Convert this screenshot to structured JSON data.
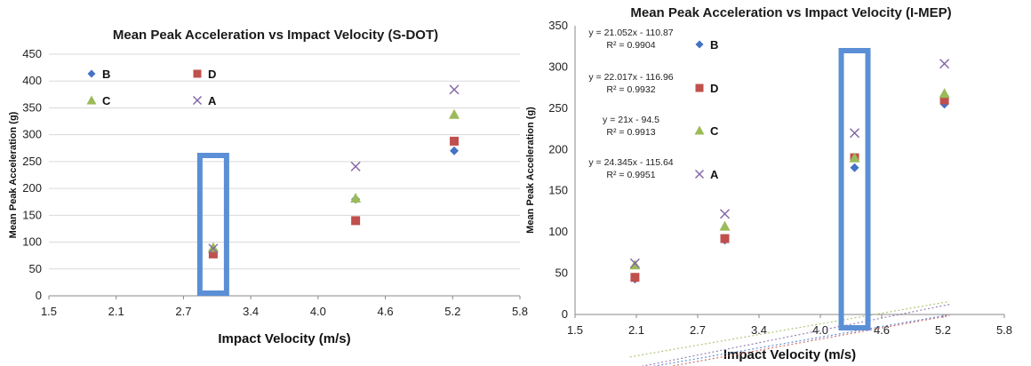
{
  "chart_data": [
    {
      "type": "scatter",
      "title": "Mean Peak Acceleration vs Impact Velocity (S-DOT)",
      "xlabel": "Impact Velocity (m/s)",
      "ylabel": "Mean Peak Acceleration (g)",
      "xlim": [
        1.5,
        5.8
      ],
      "ylim": [
        0,
        450
      ],
      "xticks": [
        "1.5",
        "2.1",
        "2.7",
        "3.4",
        "4.0",
        "4.6",
        "5.2",
        "5.8"
      ],
      "yticks": [
        "0",
        "50",
        "100",
        "150",
        "200",
        "250",
        "300",
        "350",
        "400",
        "450"
      ],
      "grid": true,
      "highlight_x": 3.0,
      "series": [
        {
          "name": "B",
          "color": "#4472C4",
          "marker": "diamond",
          "x": [
            3.0,
            4.3,
            5.2
          ],
          "y": [
            85,
            180,
            270
          ]
        },
        {
          "name": "D",
          "color": "#C0504D",
          "marker": "square",
          "x": [
            3.0,
            4.3,
            5.2
          ],
          "y": [
            78,
            140,
            288
          ]
        },
        {
          "name": "C",
          "color": "#9BBB59",
          "marker": "triangle",
          "x": [
            3.0,
            4.3,
            5.2
          ],
          "y": [
            90,
            182,
            338
          ]
        },
        {
          "name": "A",
          "color": "#8064A2",
          "marker": "cross",
          "x": [
            3.0,
            4.3,
            5.2
          ],
          "y": [
            88,
            241,
            384
          ]
        }
      ]
    },
    {
      "type": "scatter",
      "title": "Mean Peak Acceleration vs Impact Velocity (I-MEP)",
      "xlabel": "Impact Velocity (m/s)",
      "ylabel": "Mean Peak Acceleration (g)",
      "xlim": [
        1.5,
        5.8
      ],
      "ylim": [
        0,
        350
      ],
      "xticks": [
        "1.5",
        "2.1",
        "2.7",
        "3.4",
        "4.0",
        "4.6",
        "5.2",
        "5.8"
      ],
      "yticks": [
        "0",
        "50",
        "100",
        "150",
        "200",
        "250",
        "300",
        "350"
      ],
      "grid": false,
      "highlight_x": 4.3,
      "series": [
        {
          "name": "B",
          "color": "#4472C4",
          "marker": "diamond",
          "x": [
            2.1,
            3.0,
            4.3,
            5.2
          ],
          "y": [
            43,
            90,
            178,
            255
          ],
          "trend": {
            "slope": 21.052,
            "intercept": -110.87
          },
          "equation": "y = 21.052x - 110.87",
          "r2": "R² = 0.9904"
        },
        {
          "name": "D",
          "color": "#C0504D",
          "marker": "square",
          "x": [
            2.1,
            3.0,
            4.3,
            5.2
          ],
          "y": [
            45,
            92,
            190,
            260
          ],
          "trend": {
            "slope": 22.017,
            "intercept": -116.96
          },
          "equation": "y = 22.017x - 116.96",
          "r2": "R² = 0.9932"
        },
        {
          "name": "C",
          "color": "#9BBB59",
          "marker": "triangle",
          "x": [
            2.1,
            3.0,
            4.3,
            5.2
          ],
          "y": [
            60,
            107,
            190,
            268
          ],
          "trend": {
            "slope": 21,
            "intercept": -94.5
          },
          "equation": "y = 21x - 94.5",
          "r2": "R² = 0.9913"
        },
        {
          "name": "A",
          "color": "#8064A2",
          "marker": "cross",
          "x": [
            2.1,
            3.0,
            4.3,
            5.2
          ],
          "y": [
            62,
            122,
            220,
            304
          ],
          "trend": {
            "slope": 24.345,
            "intercept": -115.64
          },
          "equation": "y = 24.345x - 115.64",
          "r2": "R² = 0.9951"
        }
      ]
    }
  ]
}
